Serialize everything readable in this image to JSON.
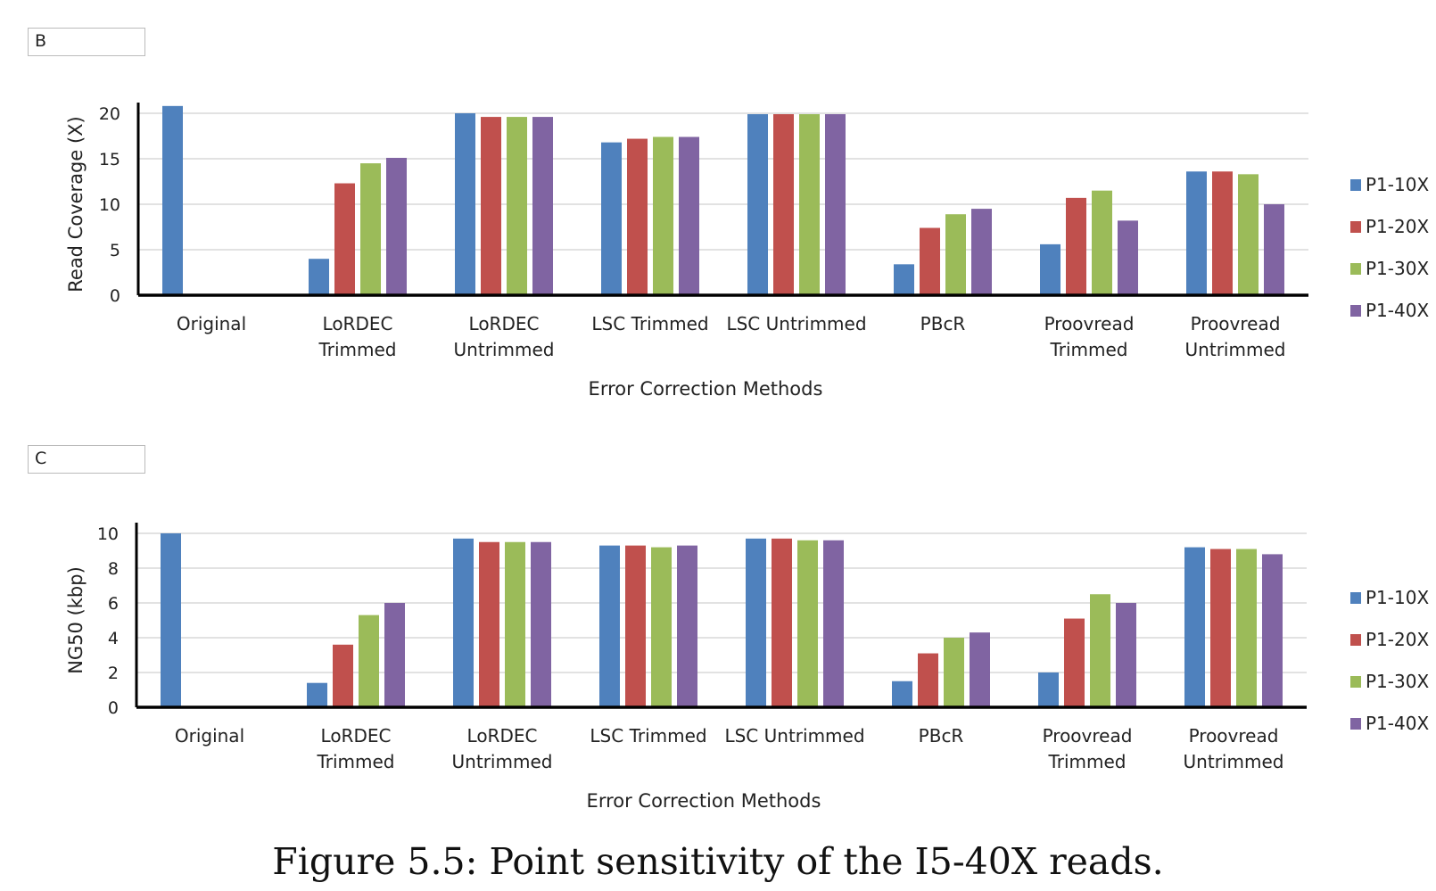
{
  "panels": [
    "B",
    "C"
  ],
  "caption": "Figure 5.5: Point sensitivity of the I5-40X reads.",
  "chart_data": [
    {
      "type": "bar",
      "panel": "B",
      "xlabel": "Error Correction Methods",
      "ylabel": "Read Coverage (X)",
      "ylim": [
        0,
        20
      ],
      "yticks": [
        0,
        5,
        10,
        15,
        20
      ],
      "grid": true,
      "legend_position": "right",
      "categories": [
        "Original",
        "LoRDEC\nTrimmed",
        "LoRDEC\nUntrimmed",
        "LSC Trimmed",
        "LSC Untrimmed",
        "PBcR",
        "Proovread\nTrimmed",
        "Proovread\nUntrimmed"
      ],
      "series": [
        {
          "name": "P1-10X",
          "color": "#4f81bd",
          "values": [
            20.8,
            4.0,
            20.0,
            16.8,
            19.9,
            3.4,
            5.6,
            13.6
          ]
        },
        {
          "name": "P1-20X",
          "color": "#c0504d",
          "values": [
            null,
            12.3,
            19.6,
            17.2,
            19.9,
            7.4,
            10.7,
            13.6
          ]
        },
        {
          "name": "P1-30X",
          "color": "#9bbb59",
          "values": [
            null,
            14.5,
            19.6,
            17.4,
            19.9,
            8.9,
            11.5,
            13.3
          ]
        },
        {
          "name": "P1-40X",
          "color": "#8064a2",
          "values": [
            null,
            15.1,
            19.6,
            17.4,
            19.9,
            9.5,
            8.2,
            10.0
          ]
        }
      ]
    },
    {
      "type": "bar",
      "panel": "C",
      "xlabel": "Error Correction Methods",
      "ylabel": "NG50 (kbp)",
      "ylim": [
        0,
        10
      ],
      "yticks": [
        0,
        2,
        4,
        6,
        8,
        10
      ],
      "grid": true,
      "legend_position": "right",
      "categories": [
        "Original",
        "LoRDEC\nTrimmed",
        "LoRDEC\nUntrimmed",
        "LSC Trimmed",
        "LSC Untrimmed",
        "PBcR",
        "Proovread\nTrimmed",
        "Proovread\nUntrimmed"
      ],
      "series": [
        {
          "name": "P1-10X",
          "color": "#4f81bd",
          "values": [
            10.0,
            1.4,
            9.7,
            9.3,
            9.7,
            1.5,
            2.0,
            9.2
          ]
        },
        {
          "name": "P1-20X",
          "color": "#c0504d",
          "values": [
            null,
            3.6,
            9.5,
            9.3,
            9.7,
            3.1,
            5.1,
            9.1
          ]
        },
        {
          "name": "P1-30X",
          "color": "#9bbb59",
          "values": [
            null,
            5.3,
            9.5,
            9.2,
            9.6,
            4.0,
            6.5,
            9.1
          ]
        },
        {
          "name": "P1-40X",
          "color": "#8064a2",
          "values": [
            null,
            6.0,
            9.5,
            9.3,
            9.6,
            4.3,
            6.0,
            8.8
          ]
        }
      ]
    }
  ]
}
